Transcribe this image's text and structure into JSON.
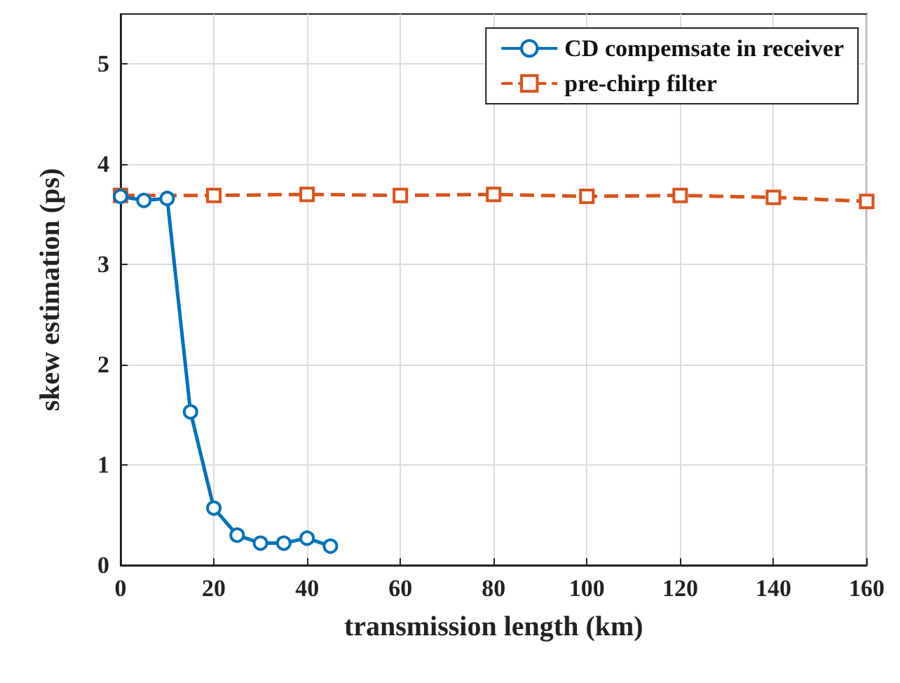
{
  "chart_data": {
    "type": "line",
    "xlabel": "transmission length (km)",
    "ylabel": "skew estimation (ps)",
    "xlim": [
      0,
      160
    ],
    "xticks": [
      0,
      20,
      40,
      60,
      80,
      100,
      120,
      140,
      160
    ],
    "ylim": [
      0,
      5.5
    ],
    "yticks": [
      0,
      1,
      2,
      3,
      4,
      5
    ],
    "grid": true,
    "legend": "top right",
    "series": [
      {
        "name": "CD compemsate in receiver",
        "color": "#0072bd",
        "marker": "circle",
        "line_style": "solid",
        "x": [
          0,
          5,
          10,
          15,
          20,
          25,
          30,
          35,
          40,
          45
        ],
        "values": [
          3.68,
          3.64,
          3.66,
          1.53,
          0.57,
          0.3,
          0.22,
          0.22,
          0.27,
          0.19
        ]
      },
      {
        "name": "pre-chirp filter",
        "color": "#d95319",
        "marker": "square",
        "line_style": "dashed",
        "x": [
          0,
          20,
          40,
          60,
          80,
          100,
          120,
          140,
          160
        ],
        "values": [
          3.69,
          3.69,
          3.7,
          3.69,
          3.7,
          3.68,
          3.69,
          3.67,
          3.63
        ]
      }
    ]
  }
}
